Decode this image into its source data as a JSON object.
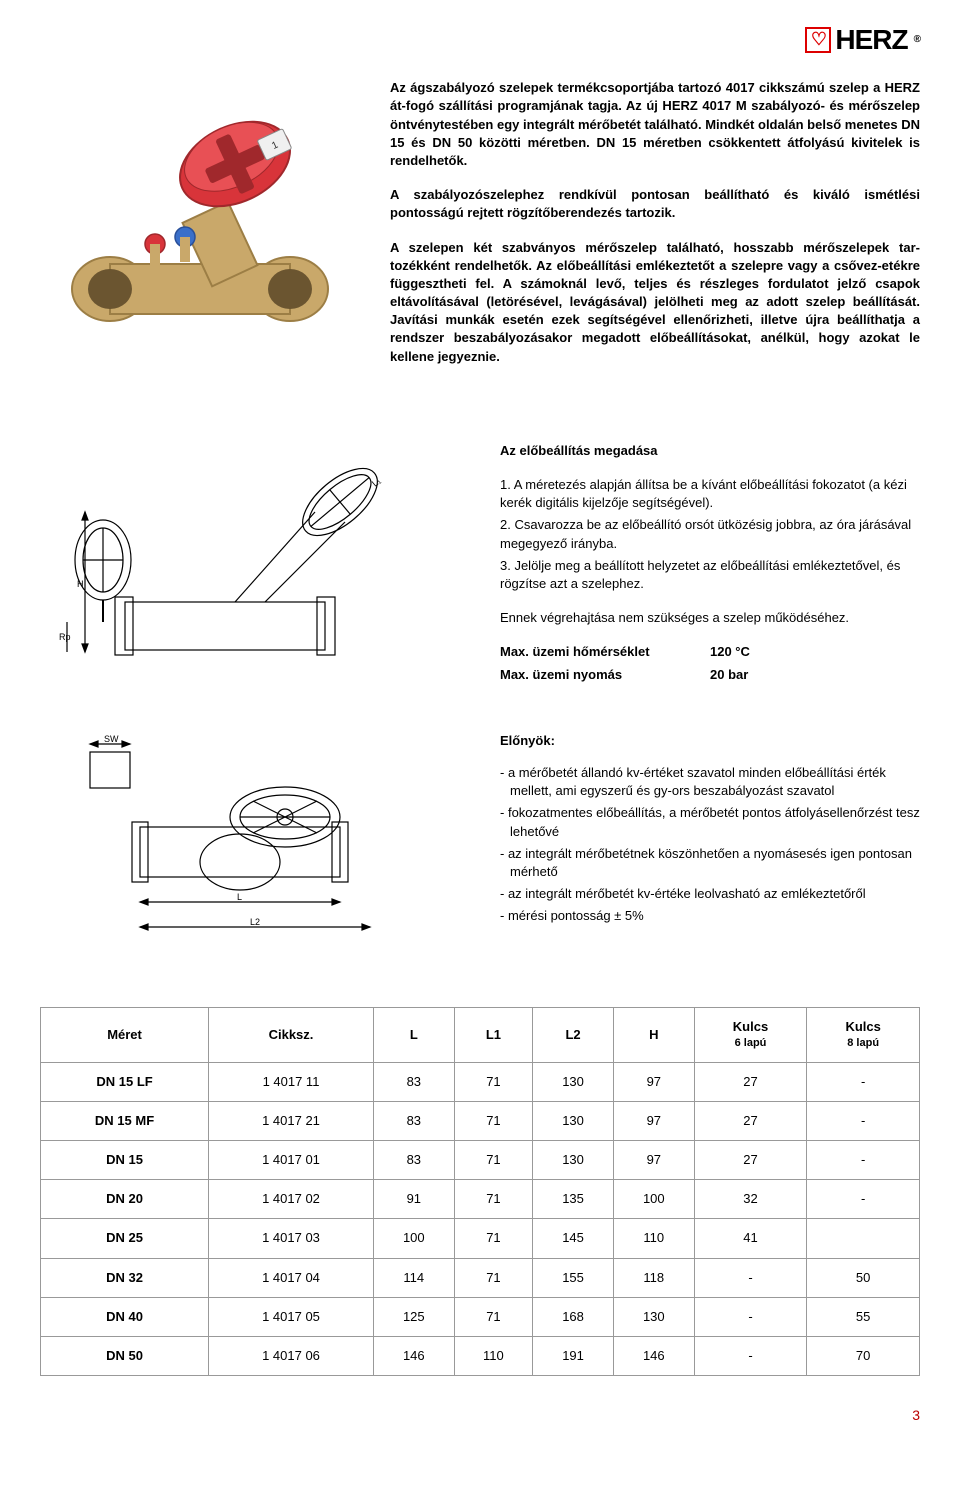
{
  "brand": "HERZ",
  "intro": {
    "p1": "Az ágszabályozó szelepek termékcsoportjába tartozó 4017 cikkszámú szelep a HERZ át-fogó szállítási programjának tagja. Az új HERZ 4017 M szabályozó- és mérőszelep öntvénytestében egy integrált mérőbetét található. Mindkét oldalán belső menetes DN 15 és DN 50 közötti méretben. DN 15 méretben csökkentett átfolyású kivitelek is rendelhetők.",
    "p2": "A szabályozószelephez rendkívül pontosan beállítható és kiváló ismétlési pontosságú rejtett rögzítőberendezés tartozik.",
    "p3": "A szelepen két szabványos mérőszelep található, hosszabb mérőszelepek tar-tozékként rendelhetők. Az előbeállítási emlékeztetőt a szelepre vagy a csővez-etékre függesztheti fel. A számoknál levő, teljes és részleges fordulatot jelző csapok eltávolításával (letörésével, levágásával) jelölheti meg az adott szelep beállítását. Javítási munkák esetén ezek segítségével ellenőrizheti, illetve újra beállíthatja a rendszer beszabályozásakor megadott előbeállításokat, anélkül, hogy azokat le kellene jegyeznie."
  },
  "preset": {
    "title": "Az előbeállítás megadása",
    "steps": [
      "1. A méretezés alapján állítsa be a kívánt előbeállítási fokozatot (a kézi kerék digitális kijelzője segítségével).",
      "2. Csavarozza be az előbeállító orsót ütközésig jobbra, az óra járásával megegyező irányba.",
      "3. Jelölje meg a beállított helyzetet az előbeállítási emlékeztetővel, és rögzítse azt a szelephez."
    ],
    "note": "Ennek végrehajtása nem szükséges a szelep működéséhez.",
    "max_temp_label": "Max. üzemi hőmérséklet",
    "max_temp_value": "120 °C",
    "max_press_label": "Max. üzemi nyomás",
    "max_press_value": "20 bar"
  },
  "advantages": {
    "title": "Előnyök:",
    "items": [
      "a mérőbetét állandó kv-értéket szavatol minden előbeállítási érték mellett, ami egyszerű és gy-ors beszabályozást szavatol",
      "fokozatmentes előbeállítás, a mérőbetét pontos átfolyásellenőrzést tesz lehetővé",
      "az integrált mérőbetétnek köszönhetően a nyomásesés igen pontosan mérhető",
      "az integrált mérőbetét kv-értéke leolvasható az emlékeztetőről",
      "mérési pontosság ± 5%"
    ]
  },
  "diagram_labels": {
    "H": "H",
    "Rp": "Rp",
    "SW": "SW",
    "L": "L",
    "L1": "L₁",
    "L2": "L2"
  },
  "table": {
    "columns": [
      "Méret",
      "Cikksz.",
      "L",
      "L1",
      "L2",
      "H",
      "Kulcs 6 lapú",
      "Kulcs 8 lapú"
    ],
    "col_sub": [
      "",
      "",
      "",
      "",
      "",
      "",
      "6 lapú",
      "8 lapú"
    ],
    "rows": [
      [
        "DN 15 LF",
        "1 4017 11",
        "83",
        "71",
        "130",
        "97",
        "27",
        "-"
      ],
      [
        "DN 15 MF",
        "1 4017 21",
        "83",
        "71",
        "130",
        "97",
        "27",
        "-"
      ],
      [
        "DN 15",
        "1 4017 01",
        "83",
        "71",
        "130",
        "97",
        "27",
        "-"
      ],
      [
        "DN 20",
        "1 4017 02",
        "91",
        "71",
        "135",
        "100",
        "32",
        "-"
      ],
      [
        "DN 25",
        "1 4017 03",
        "100",
        "71",
        "145",
        "110",
        "41",
        ""
      ],
      [
        "DN 32",
        "1 4017 04",
        "114",
        "71",
        "155",
        "118",
        "-",
        "50"
      ],
      [
        "DN 40",
        "1 4017 05",
        "125",
        "71",
        "168",
        "130",
        "-",
        "55"
      ],
      [
        "DN 50",
        "1 4017 06",
        "146",
        "110",
        "191",
        "146",
        "-",
        "70"
      ]
    ]
  },
  "page_number": "3",
  "colors": {
    "brass": "#c9a86a",
    "brass_dark": "#9c7e45",
    "red_handle": "#d8343a",
    "red_dark": "#a0282c",
    "blue_cap": "#3a6fc9",
    "line": "#000"
  }
}
